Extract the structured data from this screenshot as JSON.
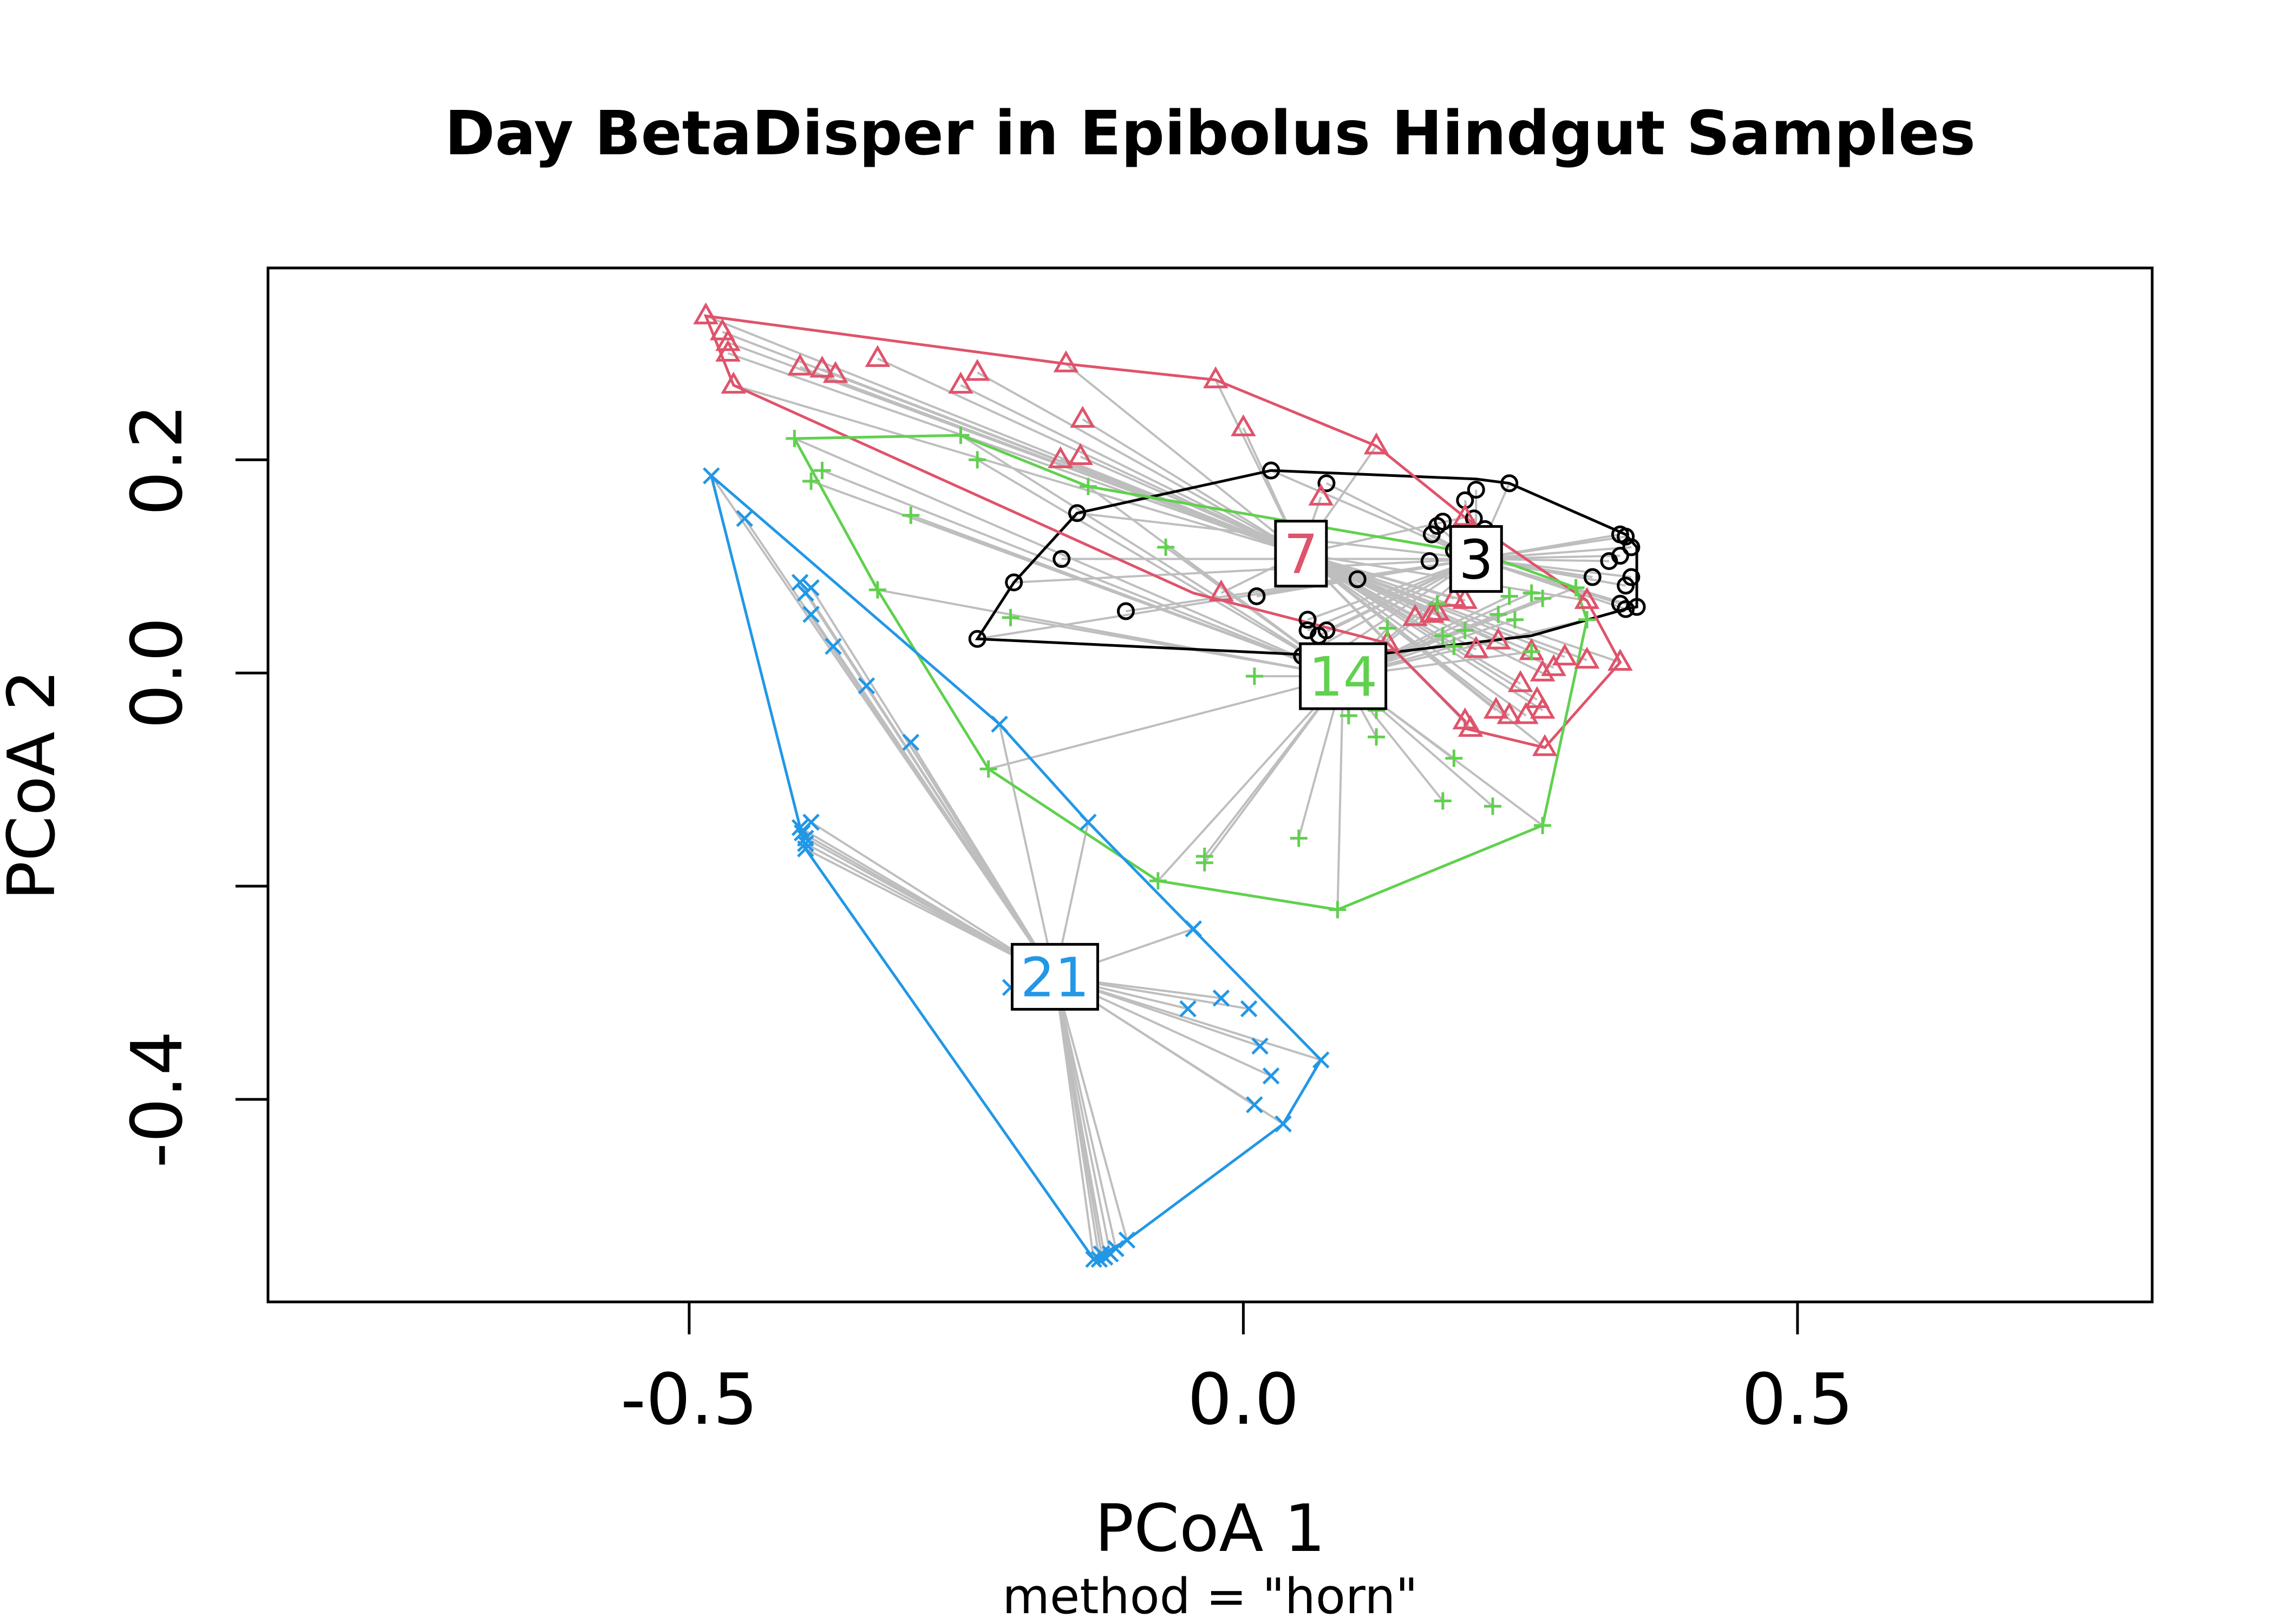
{
  "chart_data": {
    "type": "scatter",
    "title": "Day BetaDisper in Epibolus Hindgut Samples",
    "xlabel": "PCoA 1",
    "ylabel": "PCoA 2",
    "subtitle": "method = \"horn\"",
    "xlim": [
      -0.88,
      0.82
    ],
    "ylim": [
      -0.59,
      0.38
    ],
    "x_ticks": [
      -0.5,
      0.0,
      0.5
    ],
    "x_tick_labels": [
      "-0.5",
      "0.0",
      "0.5"
    ],
    "y_ticks": [
      -0.4,
      -0.2,
      0.0,
      0.2
    ],
    "y_tick_labels": [
      "-0.4",
      "",
      "0.0",
      "0.2"
    ],
    "segment_color": "#BEBEBE",
    "series": [
      {
        "name": "3",
        "color": "#000000",
        "marker": "circle",
        "centroid": [
          0.21,
          0.107
        ],
        "hull": [
          [
            -0.24,
            0.032
          ],
          [
            -0.207,
            0.085
          ],
          [
            -0.15,
            0.15
          ],
          [
            0.025,
            0.19
          ],
          [
            0.21,
            0.182
          ],
          [
            0.24,
            0.178
          ],
          [
            0.345,
            0.13
          ],
          [
            0.355,
            0.118
          ],
          [
            0.355,
            0.062
          ],
          [
            0.345,
            0.06
          ],
          [
            0.26,
            0.035
          ],
          [
            0.1,
            0.015
          ]
        ],
        "points": [
          [
            -0.24,
            0.032
          ],
          [
            -0.207,
            0.085
          ],
          [
            -0.164,
            0.107
          ],
          [
            -0.15,
            0.15
          ],
          [
            -0.106,
            0.058
          ],
          [
            0.012,
            0.072
          ],
          [
            0.025,
            0.19
          ],
          [
            0.075,
            0.178
          ],
          [
            0.053,
            0.016
          ],
          [
            0.058,
            0.05
          ],
          [
            0.06,
            0.003
          ],
          [
            0.058,
            0.04
          ],
          [
            0.068,
            0.035
          ],
          [
            0.075,
            0.04
          ],
          [
            0.103,
            0.088
          ],
          [
            0.168,
            0.105
          ],
          [
            0.17,
            0.13
          ],
          [
            0.175,
            0.138
          ],
          [
            0.18,
            0.142
          ],
          [
            0.19,
            0.115
          ],
          [
            0.2,
            0.162
          ],
          [
            0.208,
            0.145
          ],
          [
            0.218,
            0.135
          ],
          [
            0.21,
            0.172
          ],
          [
            0.218,
            0.112
          ],
          [
            0.24,
            0.178
          ],
          [
            0.315,
            0.09
          ],
          [
            0.33,
            0.105
          ],
          [
            0.34,
            0.13
          ],
          [
            0.345,
            0.128
          ],
          [
            0.35,
            0.118
          ],
          [
            0.34,
            0.11
          ],
          [
            0.35,
            0.09
          ],
          [
            0.345,
            0.082
          ],
          [
            0.34,
            0.065
          ],
          [
            0.345,
            0.06
          ],
          [
            0.355,
            0.062
          ]
        ]
      },
      {
        "name": "7",
        "color": "#DF536B",
        "marker": "triangle",
        "centroid": [
          0.052,
          0.112
        ],
        "hull": [
          [
            -0.485,
            0.335
          ],
          [
            -0.16,
            0.29
          ],
          [
            -0.025,
            0.275
          ],
          [
            0.12,
            0.213
          ],
          [
            0.2,
            0.146
          ],
          [
            0.31,
            0.068
          ],
          [
            0.34,
            0.01
          ],
          [
            0.272,
            -0.07
          ],
          [
            0.2,
            -0.052
          ],
          [
            0.2,
            -0.045
          ],
          [
            0.13,
            0.028
          ],
          [
            -0.045,
            0.075
          ],
          [
            -0.46,
            0.27
          ]
        ],
        "points": [
          [
            -0.485,
            0.335
          ],
          [
            -0.47,
            0.32
          ],
          [
            -0.465,
            0.31
          ],
          [
            -0.465,
            0.3
          ],
          [
            -0.46,
            0.27
          ],
          [
            -0.4,
            0.287
          ],
          [
            -0.38,
            0.285
          ],
          [
            -0.368,
            0.28
          ],
          [
            -0.33,
            0.295
          ],
          [
            -0.255,
            0.27
          ],
          [
            -0.24,
            0.282
          ],
          [
            -0.16,
            0.29
          ],
          [
            -0.145,
            0.238
          ],
          [
            -0.165,
            0.2
          ],
          [
            -0.147,
            0.203
          ],
          [
            -0.025,
            0.275
          ],
          [
            0.0,
            0.23
          ],
          [
            0.12,
            0.213
          ],
          [
            0.07,
            0.165
          ],
          [
            -0.02,
            0.075
          ],
          [
            0.06,
            0.09
          ],
          [
            0.2,
            0.146
          ],
          [
            0.31,
            0.068
          ],
          [
            0.17,
            0.055
          ],
          [
            0.19,
            0.07
          ],
          [
            0.2,
            0.068
          ],
          [
            0.155,
            0.052
          ],
          [
            0.175,
            0.057
          ],
          [
            0.13,
            0.028
          ],
          [
            0.21,
            0.022
          ],
          [
            0.23,
            0.03
          ],
          [
            0.26,
            0.02
          ],
          [
            0.29,
            0.015
          ],
          [
            0.31,
            0.012
          ],
          [
            0.34,
            0.01
          ],
          [
            0.25,
            -0.01
          ],
          [
            0.27,
            0.0
          ],
          [
            0.28,
            0.005
          ],
          [
            0.265,
            -0.025
          ],
          [
            0.27,
            -0.035
          ],
          [
            0.255,
            -0.04
          ],
          [
            0.24,
            -0.04
          ],
          [
            0.228,
            -0.035
          ],
          [
            0.2,
            -0.045
          ],
          [
            0.205,
            -0.052
          ],
          [
            0.272,
            -0.07
          ]
        ]
      },
      {
        "name": "14",
        "color": "#61D04F",
        "marker": "plus",
        "centroid": [
          0.09,
          -0.003
        ],
        "hull": [
          [
            -0.405,
            0.22
          ],
          [
            -0.255,
            0.223
          ],
          [
            -0.14,
            0.175
          ],
          [
            0.22,
            0.11
          ],
          [
            0.3,
            0.08
          ],
          [
            0.31,
            0.05
          ],
          [
            0.27,
            -0.143
          ],
          [
            0.085,
            -0.222
          ],
          [
            -0.077,
            -0.195
          ],
          [
            -0.23,
            -0.09
          ],
          [
            -0.33,
            0.078
          ]
        ],
        "points": [
          [
            -0.405,
            0.22
          ],
          [
            -0.39,
            0.18
          ],
          [
            -0.38,
            0.19
          ],
          [
            -0.33,
            0.078
          ],
          [
            -0.3,
            0.148
          ],
          [
            -0.255,
            0.223
          ],
          [
            -0.24,
            0.2
          ],
          [
            -0.23,
            -0.09
          ],
          [
            -0.21,
            0.052
          ],
          [
            -0.14,
            0.175
          ],
          [
            -0.07,
            0.118
          ],
          [
            -0.035,
            -0.172
          ],
          [
            -0.035,
            -0.178
          ],
          [
            -0.077,
            -0.195
          ],
          [
            0.01,
            -0.003
          ],
          [
            0.085,
            -0.222
          ],
          [
            0.05,
            -0.155
          ],
          [
            0.095,
            -0.04
          ],
          [
            0.12,
            -0.035
          ],
          [
            0.12,
            -0.06
          ],
          [
            0.13,
            0.042
          ],
          [
            0.175,
            0.065
          ],
          [
            0.18,
            0.035
          ],
          [
            0.19,
            0.025
          ],
          [
            0.2,
            0.04
          ],
          [
            0.19,
            -0.08
          ],
          [
            0.18,
            -0.12
          ],
          [
            0.225,
            -0.125
          ],
          [
            0.23,
            0.055
          ],
          [
            0.24,
            0.072
          ],
          [
            0.245,
            0.05
          ],
          [
            0.26,
            0.075
          ],
          [
            0.27,
            0.07
          ],
          [
            0.3,
            0.08
          ],
          [
            0.31,
            0.05
          ],
          [
            0.26,
            0.02
          ],
          [
            0.27,
            -0.143
          ],
          [
            0.22,
            0.11
          ]
        ]
      },
      {
        "name": "21",
        "color": "#2297E6",
        "marker": "cross",
        "centroid": [
          -0.17,
          -0.285
        ],
        "hull": [
          [
            -0.48,
            0.185
          ],
          [
            -0.22,
            -0.048
          ],
          [
            -0.14,
            -0.14
          ],
          [
            0.07,
            -0.363
          ],
          [
            0.036,
            -0.423
          ],
          [
            -0.105,
            -0.532
          ],
          [
            -0.135,
            -0.55
          ],
          [
            -0.395,
            -0.165
          ]
        ],
        "points": [
          [
            -0.48,
            0.185
          ],
          [
            -0.45,
            0.145
          ],
          [
            -0.4,
            0.085
          ],
          [
            -0.395,
            0.075
          ],
          [
            -0.39,
            0.08
          ],
          [
            -0.39,
            0.055
          ],
          [
            -0.37,
            0.025
          ],
          [
            -0.34,
            -0.012
          ],
          [
            -0.3,
            -0.065
          ],
          [
            -0.22,
            -0.048
          ],
          [
            -0.14,
            -0.14
          ],
          [
            -0.4,
            -0.145
          ],
          [
            -0.398,
            -0.15
          ],
          [
            -0.395,
            -0.155
          ],
          [
            -0.395,
            -0.16
          ],
          [
            -0.39,
            -0.14
          ],
          [
            -0.395,
            -0.165
          ],
          [
            -0.21,
            -0.295
          ],
          [
            -0.045,
            -0.24
          ],
          [
            -0.05,
            -0.315
          ],
          [
            -0.02,
            -0.305
          ],
          [
            0.005,
            -0.315
          ],
          [
            0.015,
            -0.35
          ],
          [
            0.07,
            -0.363
          ],
          [
            0.025,
            -0.378
          ],
          [
            0.01,
            -0.405
          ],
          [
            0.036,
            -0.423
          ],
          [
            -0.105,
            -0.532
          ],
          [
            -0.115,
            -0.54
          ],
          [
            -0.12,
            -0.545
          ],
          [
            -0.125,
            -0.548
          ],
          [
            -0.13,
            -0.55
          ],
          [
            -0.135,
            -0.55
          ],
          [
            -0.128,
            -0.545
          ]
        ]
      }
    ]
  }
}
